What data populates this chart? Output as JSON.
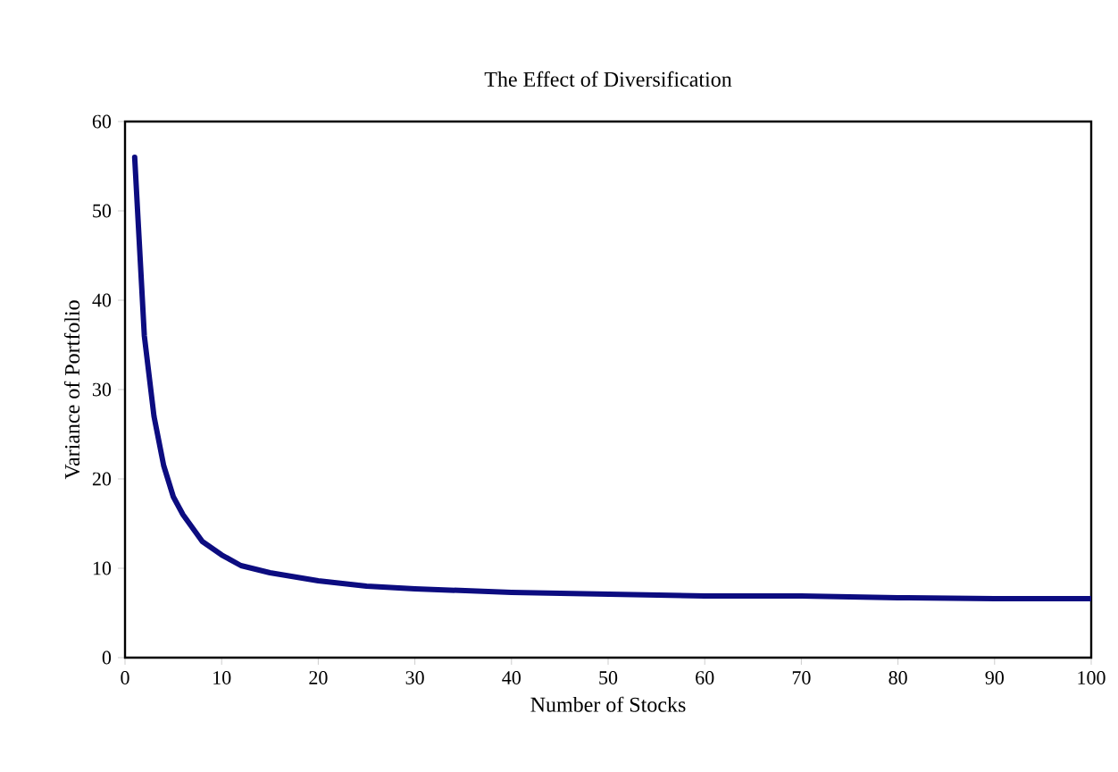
{
  "chart_data": {
    "type": "line",
    "title": "The Effect of Diversification",
    "xlabel": "Number of Stocks",
    "ylabel": "Variance of Portfolio",
    "x": [
      1,
      2,
      3,
      4,
      5,
      6,
      7,
      8,
      10,
      12,
      15,
      20,
      25,
      30,
      35,
      40,
      50,
      60,
      70,
      80,
      90,
      100
    ],
    "series": [
      {
        "color": "#0c0c80",
        "values": [
          56,
          36,
          27,
          21.5,
          18,
          16,
          14.5,
          13,
          11.5,
          10.3,
          9.5,
          8.6,
          8.0,
          7.7,
          7.5,
          7.3,
          7.1,
          6.9,
          6.9,
          6.7,
          6.6,
          6.6
        ]
      }
    ],
    "xlim": [
      0,
      100
    ],
    "xticks": [
      0,
      10,
      20,
      30,
      40,
      50,
      60,
      70,
      80,
      90,
      100
    ],
    "ylim": [
      0,
      60
    ],
    "yticks": [
      0,
      10,
      20,
      30,
      40,
      50,
      60
    ],
    "grid": false,
    "marker": "none",
    "line_style": "solid"
  }
}
